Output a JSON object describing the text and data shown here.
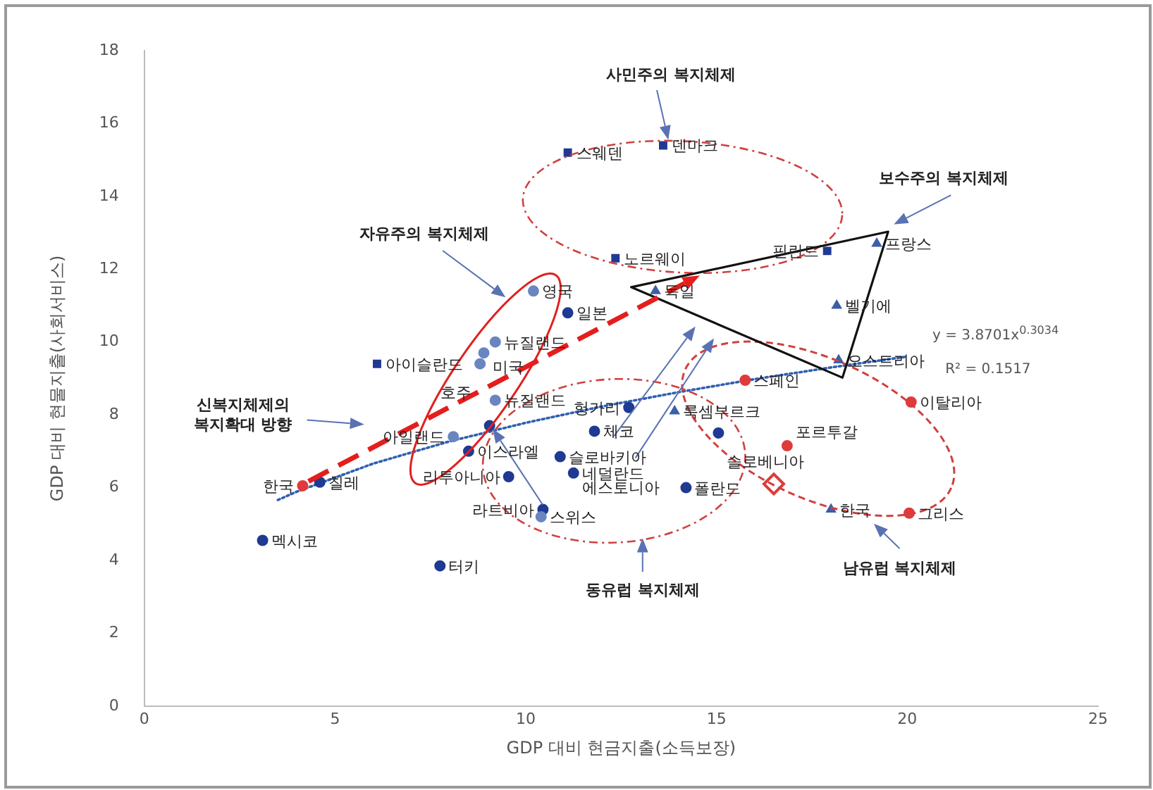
{
  "chart_data": {
    "type": "scatter",
    "xlabel": "GDP 대비 현금지출(소득보장)",
    "ylabel": "GDP 대비 현물지출(사회서비스)",
    "xlim": [
      0,
      25
    ],
    "xticks": [
      0,
      5,
      10,
      15,
      20,
      25
    ],
    "ylim": [
      0,
      18
    ],
    "yticks": [
      0,
      2,
      4,
      6,
      8,
      10,
      12,
      14,
      16,
      18
    ],
    "grid": false,
    "legend": false,
    "series": [
      {
        "type": "scatter",
        "marker": "square",
        "color": "#1f3a93",
        "x": [
          11.1,
          13.6,
          12.35,
          17.9,
          6.1
        ],
        "values": [
          15.2,
          15.4,
          12.3,
          12.5,
          9.4
        ]
      },
      {
        "type": "scatter",
        "marker": "triangle",
        "color": "#3b5fa8",
        "x": [
          19.2,
          13.4,
          18.15,
          18.2,
          13.9,
          18.0
        ],
        "values": [
          12.7,
          11.4,
          11.0,
          9.5,
          8.1,
          5.4
        ]
      },
      {
        "type": "scatter",
        "marker": "circle",
        "color": "#6a86c0",
        "x": [
          10.2,
          9.2,
          8.9,
          8.8,
          8.1,
          9.2,
          10.4
        ],
        "values": [
          11.4,
          10.0,
          9.7,
          9.4,
          7.4,
          8.4,
          5.2
        ]
      },
      {
        "type": "scatter",
        "marker": "circle",
        "color": "#1f3a93",
        "x": [
          11.1,
          4.6,
          3.1,
          7.75,
          8.5,
          9.55,
          9.05,
          12.7,
          11.8,
          10.9,
          11.25,
          10.45,
          15.05,
          14.2
        ],
        "values": [
          10.8,
          6.15,
          4.55,
          3.85,
          7.0,
          6.3,
          7.7,
          8.2,
          7.55,
          6.85,
          6.4,
          5.4,
          7.5,
          6.0
        ]
      },
      {
        "type": "scatter",
        "marker": "circle",
        "color": "#e03a3a",
        "x": [
          4.15,
          15.75,
          20.1,
          16.85,
          20.05
        ],
        "values": [
          6.05,
          8.95,
          8.35,
          7.15,
          5.3
        ]
      },
      {
        "type": "scatter",
        "marker": "diamond",
        "color": "#e03a3a",
        "x": [
          16.5
        ],
        "values": [
          6.1
        ]
      },
      {
        "type": "line",
        "line_style": "dotted",
        "marker": "none",
        "color": "#2f5fb0",
        "x": [
          3.5,
          4,
          6,
          8,
          10,
          12,
          14,
          16,
          18,
          20
        ],
        "values": [
          5.66,
          5.89,
          6.66,
          7.27,
          7.78,
          8.23,
          8.62,
          8.98,
          9.3,
          9.6
        ]
      }
    ],
    "annotations": [
      {
        "text": "스웨덴",
        "x": 11.1,
        "y": 15.2
      },
      {
        "text": "덴마크",
        "x": 13.6,
        "y": 15.4
      },
      {
        "text": "노르웨이",
        "x": 12.35,
        "y": 12.3
      },
      {
        "text": "핀란드",
        "x": 17.9,
        "y": 12.5
      },
      {
        "text": "아이슬란드",
        "x": 6.1,
        "y": 9.4
      },
      {
        "text": "프랑스",
        "x": 19.2,
        "y": 12.7
      },
      {
        "text": "독일",
        "x": 13.4,
        "y": 11.4
      },
      {
        "text": "벨기에",
        "x": 18.15,
        "y": 11.0
      },
      {
        "text": "오스트리아",
        "x": 18.2,
        "y": 9.5
      },
      {
        "text": "룩셈부르크",
        "x": 13.9,
        "y": 8.1
      },
      {
        "text": "한국",
        "x": 18.0,
        "y": 5.4
      },
      {
        "text": "영국",
        "x": 10.2,
        "y": 11.4
      },
      {
        "text": "뉴질랜드",
        "x": 9.2,
        "y": 10.0
      },
      {
        "text": "미국",
        "x": 8.9,
        "y": 9.7
      },
      {
        "text": "호주",
        "x": 8.8,
        "y": 9.4
      },
      {
        "text": "아일랜드",
        "x": 8.1,
        "y": 7.4
      },
      {
        "text": "뉴질랜드",
        "x": 9.2,
        "y": 8.4
      },
      {
        "text": "스위스",
        "x": 10.4,
        "y": 5.2
      },
      {
        "text": "일본",
        "x": 11.1,
        "y": 10.8
      },
      {
        "text": "칠레",
        "x": 4.6,
        "y": 6.15
      },
      {
        "text": "멕시코",
        "x": 3.1,
        "y": 4.55
      },
      {
        "text": "터키",
        "x": 7.75,
        "y": 3.85
      },
      {
        "text": "이스라엘",
        "x": 8.5,
        "y": 7.0
      },
      {
        "text": "리투아니아",
        "x": 9.55,
        "y": 6.3
      },
      {
        "text": "헝가리",
        "x": 12.7,
        "y": 8.2
      },
      {
        "text": "체코",
        "x": 11.8,
        "y": 7.55
      },
      {
        "text": "슬로바키아",
        "x": 10.9,
        "y": 6.85
      },
      {
        "text": "에스토니아",
        "x": 11.25,
        "y": 6.4
      },
      {
        "text": "네덜란드",
        "x": 11.25,
        "y": 6.4
      },
      {
        "text": "라트비아",
        "x": 10.45,
        "y": 5.4
      },
      {
        "text": "슬로베니아",
        "x": 15.05,
        "y": 7.5
      },
      {
        "text": "폴란드",
        "x": 14.2,
        "y": 6.0
      },
      {
        "text": "한국",
        "x": 4.15,
        "y": 6.05
      },
      {
        "text": "스페인",
        "x": 15.75,
        "y": 8.95
      },
      {
        "text": "이탈리아",
        "x": 20.1,
        "y": 8.35
      },
      {
        "text": "포르투갈",
        "x": 16.85,
        "y": 7.15
      },
      {
        "text": "그리스",
        "x": 20.05,
        "y": 5.3
      },
      "사민주의 복지체제",
      "보수주의 복지체제",
      "자유주의 복지체제",
      "신복지체제의\n복지확대 방향",
      "동유럽 복지체제",
      "남유럽 복지체제",
      "y = 3.8701x$^{0.3034}$",
      "R² = 0.1517"
    ]
  }
}
